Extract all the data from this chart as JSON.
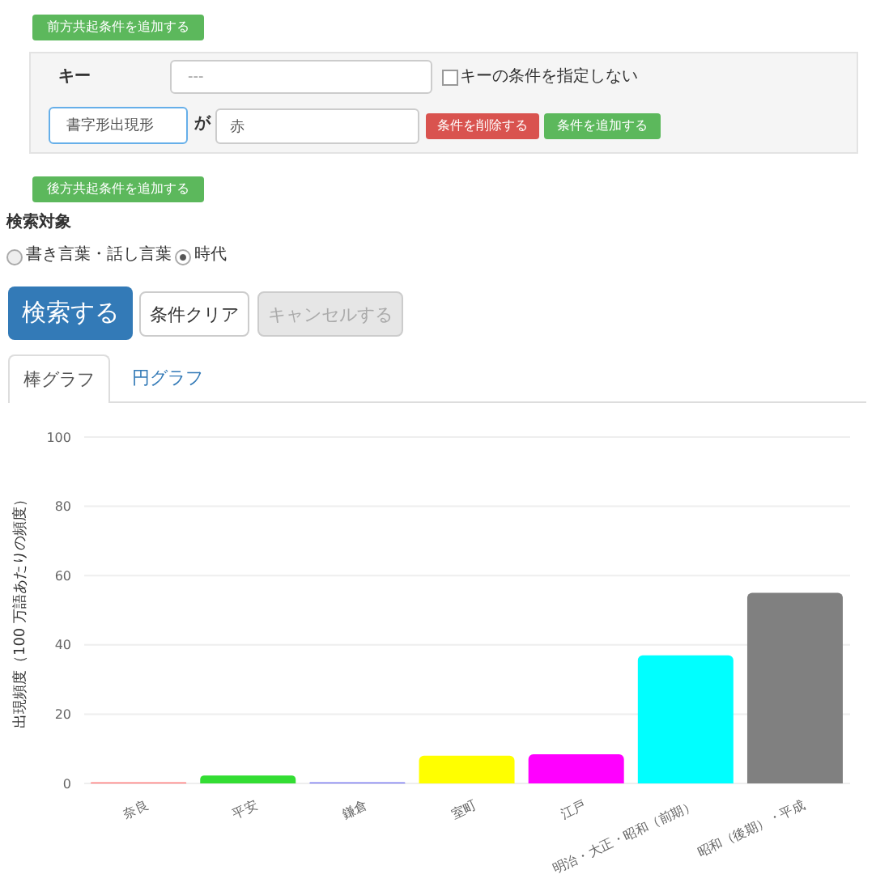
{
  "chart_data": {
    "type": "bar",
    "ylabel": "出現頻度（100 万語あたりの頻度）",
    "categories": [
      "奈良",
      "平安",
      "鎌倉",
      "室町",
      "江戸",
      "明治・大正・昭和（前期）",
      "昭和（後期）・平成"
    ],
    "values": [
      0.3,
      2.3,
      0.3,
      8,
      8.4,
      37,
      55
    ],
    "colors": [
      "#ff6666",
      "#33dd33",
      "#6666ee",
      "#ffff00",
      "#ff00ff",
      "#00ffff",
      "#808080"
    ],
    "ylim": [
      0,
      100
    ],
    "yticks": [
      0,
      20,
      40,
      60,
      80,
      100
    ],
    "grid": "y",
    "annotations": [
      "前方共起条件を追加する",
      "キー",
      "---",
      "キーの条件を指定しない",
      "書字形出現形",
      "が",
      "赤",
      "条件を削除する",
      "条件を追加する",
      "後方共起条件を追加する",
      "検索対象",
      "書き言葉・話し言葉",
      "時代",
      "検索する",
      "条件クリア",
      "キャンセルする",
      "棒グラフ",
      "円グラフ"
    ]
  }
}
